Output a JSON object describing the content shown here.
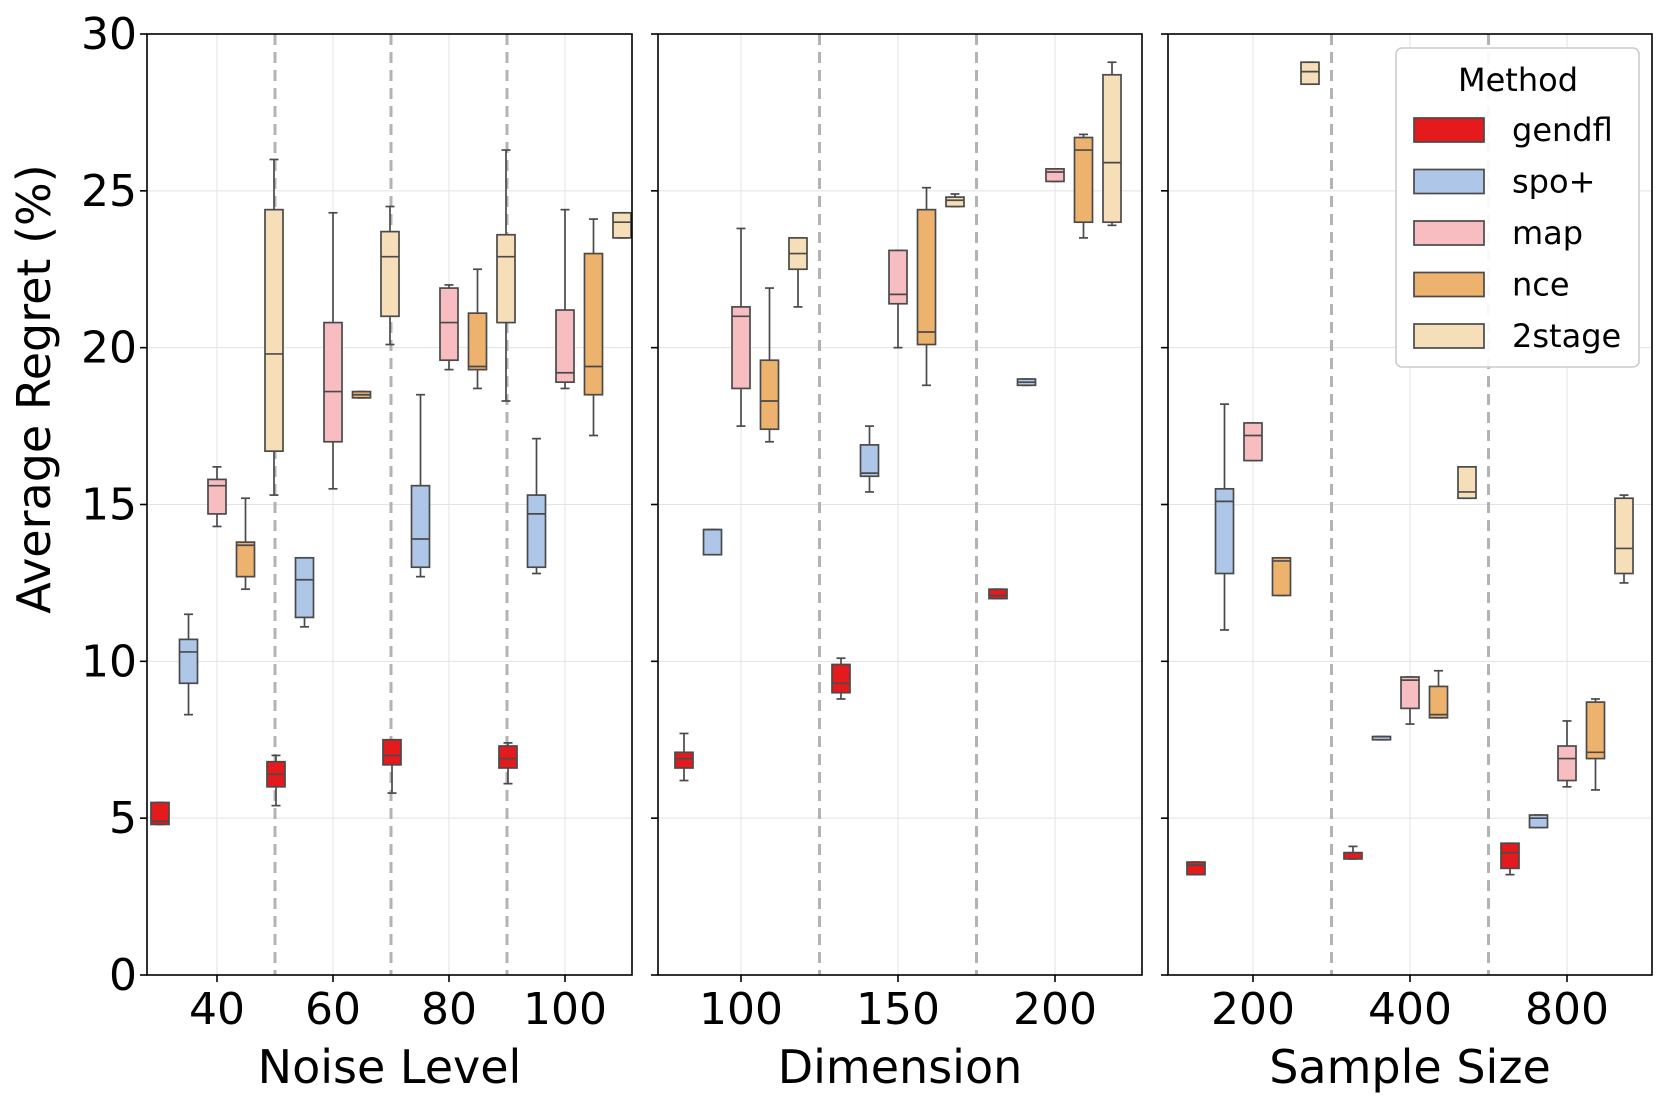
{
  "chart_data": {
    "type": "box",
    "ylabel": "Average Regret (%)",
    "ylim": [
      0,
      30
    ],
    "yticks": [
      0,
      5,
      10,
      15,
      20,
      25,
      30
    ],
    "grid": true,
    "legend": {
      "title": "Method",
      "position": "top-right",
      "entries": [
        {
          "name": "gendfl",
          "color": "#e41a1c"
        },
        {
          "name": "spo+",
          "color": "#aec6e8"
        },
        {
          "name": "map",
          "color": "#f7bdc1"
        },
        {
          "name": "nce",
          "color": "#ecb26e"
        },
        {
          "name": "2stage",
          "color": "#f6deb8"
        }
      ]
    },
    "panels": [
      {
        "xlabel": "Noise Level",
        "categories": [
          "40",
          "60",
          "80",
          "100"
        ],
        "groups": [
          {
            "category": "40",
            "boxes": [
              {
                "method": "gendfl",
                "whislo": 4.8,
                "q1": 4.8,
                "med": 4.9,
                "q3": 5.5,
                "whishi": 5.5
              },
              {
                "method": "spo+",
                "whislo": 8.3,
                "q1": 9.3,
                "med": 10.3,
                "q3": 10.7,
                "whishi": 11.5
              },
              {
                "method": "map",
                "whislo": 14.3,
                "q1": 14.7,
                "med": 15.6,
                "q3": 15.8,
                "whishi": 16.2
              },
              {
                "method": "nce",
                "whislo": 12.3,
                "q1": 12.7,
                "med": 13.7,
                "q3": 13.8,
                "whishi": 15.2
              },
              {
                "method": "2stage",
                "whislo": 15.3,
                "q1": 16.7,
                "med": 19.8,
                "q3": 24.4,
                "whishi": 26.0
              }
            ]
          },
          {
            "category": "60",
            "boxes": [
              {
                "method": "gendfl",
                "whislo": 5.4,
                "q1": 6.0,
                "med": 6.4,
                "q3": 6.8,
                "whishi": 7.0
              },
              {
                "method": "spo+",
                "whislo": 11.1,
                "q1": 11.4,
                "med": 12.6,
                "q3": 13.3,
                "whishi": 13.3
              },
              {
                "method": "map",
                "whislo": 15.5,
                "q1": 17.0,
                "med": 18.6,
                "q3": 20.8,
                "whishi": 24.3
              },
              {
                "method": "nce",
                "whislo": 18.4,
                "q1": 18.4,
                "med": 18.5,
                "q3": 18.6,
                "whishi": 18.6
              },
              {
                "method": "2stage",
                "whislo": 20.1,
                "q1": 21.0,
                "med": 22.9,
                "q3": 23.7,
                "whishi": 24.5
              }
            ]
          },
          {
            "category": "80",
            "boxes": [
              {
                "method": "gendfl",
                "whislo": 5.8,
                "q1": 6.7,
                "med": 7.0,
                "q3": 7.5,
                "whishi": 7.5
              },
              {
                "method": "spo+",
                "whislo": 12.7,
                "q1": 13.0,
                "med": 13.9,
                "q3": 15.6,
                "whishi": 18.5
              },
              {
                "method": "map",
                "whislo": 19.3,
                "q1": 19.6,
                "med": 20.8,
                "q3": 21.9,
                "whishi": 22.0
              },
              {
                "method": "nce",
                "whislo": 18.7,
                "q1": 19.3,
                "med": 19.4,
                "q3": 21.1,
                "whishi": 22.5
              },
              {
                "method": "2stage",
                "whislo": 18.3,
                "q1": 20.8,
                "med": 22.9,
                "q3": 23.6,
                "whishi": 26.3
              }
            ]
          },
          {
            "category": "100",
            "boxes": [
              {
                "method": "gendfl",
                "whislo": 6.1,
                "q1": 6.6,
                "med": 6.9,
                "q3": 7.3,
                "whishi": 7.4
              },
              {
                "method": "spo+",
                "whislo": 12.8,
                "q1": 13.0,
                "med": 14.7,
                "q3": 15.3,
                "whishi": 17.1
              },
              {
                "method": "map",
                "whislo": 18.7,
                "q1": 18.9,
                "med": 19.2,
                "q3": 21.2,
                "whishi": 24.4
              },
              {
                "method": "nce",
                "whislo": 17.2,
                "q1": 18.5,
                "med": 19.4,
                "q3": 23.0,
                "whishi": 24.1
              },
              {
                "method": "2stage",
                "whislo": 23.5,
                "q1": 23.5,
                "med": 24.0,
                "q3": 24.3,
                "whishi": 24.3
              }
            ]
          }
        ]
      },
      {
        "xlabel": "Dimension",
        "categories": [
          "100",
          "150",
          "200"
        ],
        "groups": [
          {
            "category": "100",
            "boxes": [
              {
                "method": "gendfl",
                "whislo": 6.2,
                "q1": 6.6,
                "med": 6.9,
                "q3": 7.1,
                "whishi": 7.7
              },
              {
                "method": "spo+",
                "whislo": 13.4,
                "q1": 13.4,
                "med": 14.2,
                "q3": 14.2,
                "whishi": 14.2
              },
              {
                "method": "map",
                "whislo": 17.5,
                "q1": 18.7,
                "med": 21.0,
                "q3": 21.3,
                "whishi": 23.8
              },
              {
                "method": "nce",
                "whislo": 17.0,
                "q1": 17.4,
                "med": 18.3,
                "q3": 19.6,
                "whishi": 21.9
              },
              {
                "method": "2stage",
                "whislo": 21.3,
                "q1": 22.5,
                "med": 23.0,
                "q3": 23.5,
                "whishi": 23.5
              }
            ]
          },
          {
            "category": "150",
            "boxes": [
              {
                "method": "gendfl",
                "whislo": 8.8,
                "q1": 9.0,
                "med": 9.3,
                "q3": 9.9,
                "whishi": 10.1
              },
              {
                "method": "spo+",
                "whislo": 15.4,
                "q1": 15.9,
                "med": 16.0,
                "q3": 16.9,
                "whishi": 17.5
              },
              {
                "method": "map",
                "whislo": 20.0,
                "q1": 21.4,
                "med": 21.7,
                "q3": 23.1,
                "whishi": 23.1
              },
              {
                "method": "nce",
                "whislo": 18.8,
                "q1": 20.1,
                "med": 20.5,
                "q3": 24.4,
                "whishi": 25.1
              },
              {
                "method": "2stage",
                "whislo": 24.5,
                "q1": 24.5,
                "med": 24.7,
                "q3": 24.8,
                "whishi": 24.9
              }
            ]
          },
          {
            "category": "200",
            "boxes": [
              {
                "method": "gendfl",
                "whislo": 12.0,
                "q1": 12.0,
                "med": 12.1,
                "q3": 12.3,
                "whishi": 12.3
              },
              {
                "method": "spo+",
                "whislo": 18.8,
                "q1": 18.8,
                "med": 18.9,
                "q3": 19.0,
                "whishi": 19.0
              },
              {
                "method": "map",
                "whislo": 25.3,
                "q1": 25.3,
                "med": 25.6,
                "q3": 25.7,
                "whishi": 25.7
              },
              {
                "method": "nce",
                "whislo": 23.5,
                "q1": 24.0,
                "med": 26.3,
                "q3": 26.7,
                "whishi": 26.8
              },
              {
                "method": "2stage",
                "whislo": 23.9,
                "q1": 24.0,
                "med": 25.9,
                "q3": 28.7,
                "whishi": 29.1
              }
            ]
          }
        ]
      },
      {
        "xlabel": "Sample Size",
        "categories": [
          "200",
          "400",
          "800"
        ],
        "groups": [
          {
            "category": "200",
            "boxes": [
              {
                "method": "gendfl",
                "whislo": 3.2,
                "q1": 3.2,
                "med": 3.5,
                "q3": 3.6,
                "whishi": 3.6
              },
              {
                "method": "spo+",
                "whislo": 11.0,
                "q1": 12.8,
                "med": 15.1,
                "q3": 15.5,
                "whishi": 18.2
              },
              {
                "method": "map",
                "whislo": 16.4,
                "q1": 16.4,
                "med": 17.2,
                "q3": 17.6,
                "whishi": 17.6
              },
              {
                "method": "nce",
                "whislo": 12.1,
                "q1": 12.1,
                "med": 13.2,
                "q3": 13.3,
                "whishi": 13.3
              },
              {
                "method": "2stage",
                "whislo": 28.4,
                "q1": 28.4,
                "med": 28.8,
                "q3": 29.1,
                "whishi": 29.1
              }
            ]
          },
          {
            "category": "400",
            "boxes": [
              {
                "method": "gendfl",
                "whislo": 3.7,
                "q1": 3.7,
                "med": 3.9,
                "q3": 3.9,
                "whishi": 4.1
              },
              {
                "method": "spo+",
                "whislo": 7.5,
                "q1": 7.5,
                "med": 7.6,
                "q3": 7.6,
                "whishi": 7.6
              },
              {
                "method": "map",
                "whislo": 8.0,
                "q1": 8.5,
                "med": 9.4,
                "q3": 9.5,
                "whishi": 9.5
              },
              {
                "method": "nce",
                "whislo": 8.2,
                "q1": 8.2,
                "med": 8.3,
                "q3": 9.2,
                "whishi": 9.7
              },
              {
                "method": "2stage",
                "whislo": 15.2,
                "q1": 15.2,
                "med": 15.4,
                "q3": 16.2,
                "whishi": 16.2
              }
            ]
          },
          {
            "category": "800",
            "boxes": [
              {
                "method": "gendfl",
                "whislo": 3.2,
                "q1": 3.4,
                "med": 3.9,
                "q3": 4.2,
                "whishi": 4.2
              },
              {
                "method": "spo+",
                "whislo": 4.7,
                "q1": 4.7,
                "med": 5.0,
                "q3": 5.1,
                "whishi": 5.1
              },
              {
                "method": "map",
                "whislo": 6.0,
                "q1": 6.2,
                "med": 6.9,
                "q3": 7.3,
                "whishi": 8.1
              },
              {
                "method": "nce",
                "whislo": 5.9,
                "q1": 6.9,
                "med": 7.1,
                "q3": 8.7,
                "whishi": 8.8
              },
              {
                "method": "2stage",
                "whislo": 12.5,
                "q1": 12.8,
                "med": 13.6,
                "q3": 15.2,
                "whishi": 15.3
              }
            ]
          }
        ]
      }
    ]
  }
}
